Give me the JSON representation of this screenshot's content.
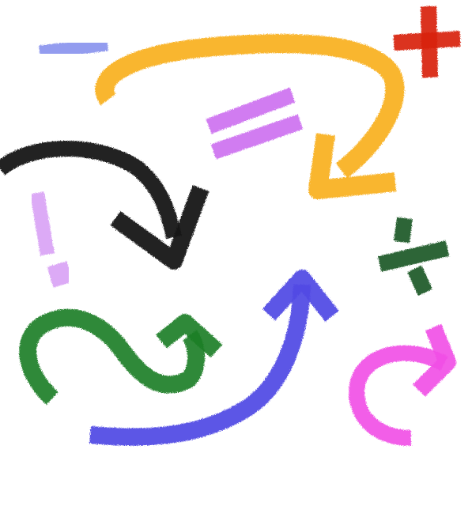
{
  "image": {
    "background_color": "#ffffff",
    "style": "brush-stroke",
    "items": [
      {
        "id": "minus",
        "symbol": "minus",
        "color": "#8a94ee"
      },
      {
        "id": "plus",
        "symbol": "plus",
        "color": "#d8230f"
      },
      {
        "id": "equals",
        "symbol": "equals",
        "color": "#cc6ff0"
      },
      {
        "id": "exclamation",
        "symbol": "exclamation-mark",
        "color": "#d79ef5"
      },
      {
        "id": "divide",
        "symbol": "division",
        "color": "#1c5a26"
      },
      {
        "id": "orange-arrow",
        "symbol": "arrow-curved",
        "color": "#f9b01f"
      },
      {
        "id": "black-arrow",
        "symbol": "arrow-curved",
        "color": "#141414"
      },
      {
        "id": "green-arrow",
        "symbol": "arrow-squiggle",
        "color": "#1e7f26"
      },
      {
        "id": "blue-arrow",
        "symbol": "arrow-curved",
        "color": "#5149e4"
      },
      {
        "id": "magenta-arrow",
        "symbol": "arrow-curved",
        "color": "#f14ce5"
      }
    ]
  }
}
